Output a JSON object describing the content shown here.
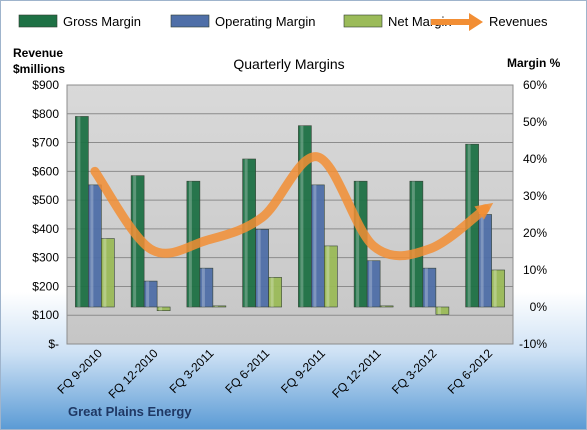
{
  "chart_data": {
    "type": "bar",
    "title": "Quarterly Margins",
    "company": "Great Plains Energy",
    "categories": [
      "FQ 9-2010",
      "FQ 12-2010",
      "FQ 3-2011",
      "FQ 6-2011",
      "FQ 9-2011",
      "FQ 12-2011",
      "FQ 3-2012",
      "FQ 6-2012"
    ],
    "series": [
      {
        "name": "Gross Margin",
        "type": "bar",
        "axis": "right",
        "color": "#1e7145",
        "values": [
          51.5,
          35.5,
          34.0,
          40.0,
          49.0,
          34.0,
          34.0,
          44.0
        ]
      },
      {
        "name": "Operating Margin",
        "type": "bar",
        "axis": "right",
        "color": "#4f6fa8",
        "values": [
          33.0,
          7.0,
          10.5,
          21.0,
          33.0,
          12.5,
          10.5,
          25.0
        ]
      },
      {
        "name": "Net Margin",
        "type": "bar",
        "axis": "right",
        "color": "#9bbb59",
        "values": [
          18.5,
          -1.0,
          0.3,
          8.0,
          16.5,
          0.3,
          -2.0,
          10.0
        ]
      },
      {
        "name": "Revenues",
        "type": "line",
        "axis": "left",
        "color": "#f28e34",
        "values": [
          600,
          330,
          360,
          440,
          650,
          340,
          330,
          470
        ]
      }
    ],
    "left_axis": {
      "title_line1": "Revenue",
      "title_line2": "$millions",
      "min": 0,
      "max": 900,
      "step": 100,
      "tick_labels": [
        "$-",
        "$100",
        "$200",
        "$300",
        "$400",
        "$500",
        "$600",
        "$700",
        "$800",
        "$900"
      ]
    },
    "right_axis": {
      "title": "Margin %",
      "min": -10,
      "max": 60,
      "step": 10,
      "tick_labels": [
        "-10%",
        "0%",
        "10%",
        "20%",
        "30%",
        "40%",
        "50%",
        "60%"
      ]
    },
    "legend_position": "top",
    "grid": true
  }
}
